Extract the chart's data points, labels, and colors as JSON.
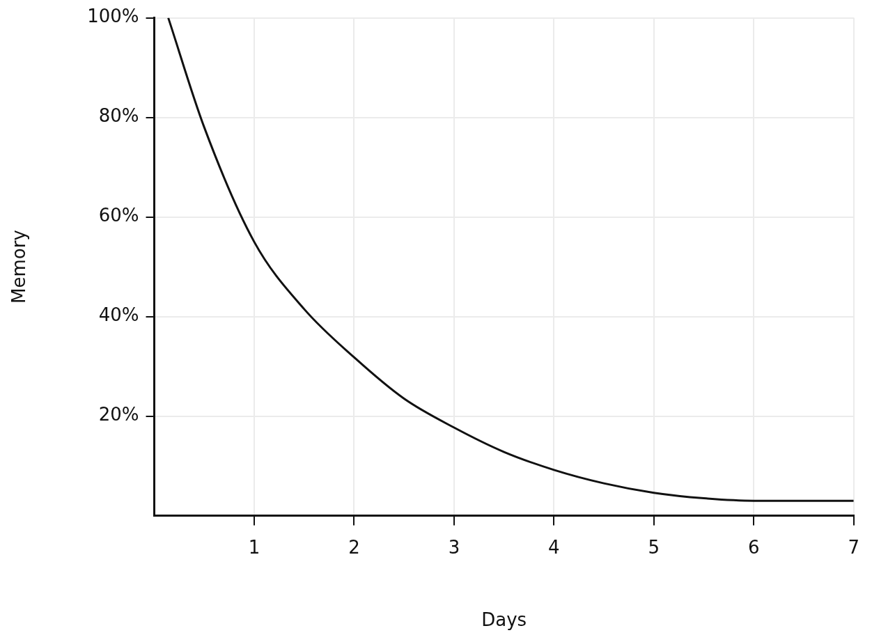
{
  "chart_data": {
    "type": "line",
    "xlabel": "Days",
    "ylabel": "Memory",
    "x": [
      0.14,
      0.5,
      1,
      1.5,
      2,
      2.5,
      3,
      3.5,
      4,
      4.5,
      5,
      5.5,
      6,
      6.5,
      7
    ],
    "series": [
      {
        "color": "#111111",
        "values": [
          100,
          78,
          55,
          41.5,
          31.8,
          23.5,
          17.7,
          12.8,
          9.2,
          6.5,
          4.6,
          3.5,
          3,
          3,
          3
        ]
      }
    ],
    "xlim": [
      0,
      7
    ],
    "xticks": [
      1,
      2,
      3,
      4,
      5,
      6,
      7
    ],
    "ylim": [
      0,
      100
    ],
    "yticks": [
      {
        "value": 20,
        "label": "20%"
      },
      {
        "value": 40,
        "label": "40%"
      },
      {
        "value": 60,
        "label": "60%"
      },
      {
        "value": 80,
        "label": "80%"
      },
      {
        "value": 100,
        "label": "100%"
      }
    ],
    "grid": true,
    "legend": false,
    "marker": "none",
    "line_style": "solid"
  }
}
